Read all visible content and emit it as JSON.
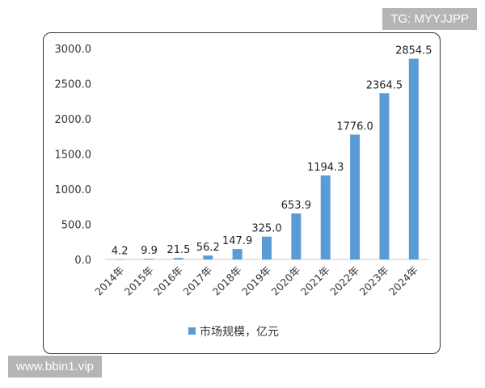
{
  "watermarks": {
    "top_right": "TG: MYYJJPP",
    "bottom_left": "www.bbin1.vip"
  },
  "chart_data": {
    "type": "bar",
    "categories": [
      "2014年",
      "2015年",
      "2016年",
      "2017年",
      "2018年",
      "2019年",
      "2020年",
      "2021年",
      "2022年",
      "2023年",
      "2024年"
    ],
    "series": [
      {
        "name": "市场规模，亿元",
        "values": [
          4.2,
          9.9,
          21.5,
          56.2,
          147.9,
          325.0,
          653.9,
          1194.3,
          1776.0,
          2364.5,
          2854.5
        ],
        "labels": [
          "4.2",
          "9.9",
          "21.5",
          "56.2",
          "147.9",
          "325.0",
          "653.9",
          "1194.3",
          "1776.0",
          "2364.5",
          "2854.5"
        ]
      }
    ],
    "title": "",
    "xlabel": "",
    "ylabel": "",
    "ylim": [
      0,
      3000
    ],
    "yticks": [
      "0.0",
      "500.0",
      "1000.0",
      "1500.0",
      "2000.0",
      "2500.0",
      "3000.0"
    ],
    "grid": false,
    "legend": "bottom",
    "bar_color": "#5b9bd5"
  }
}
